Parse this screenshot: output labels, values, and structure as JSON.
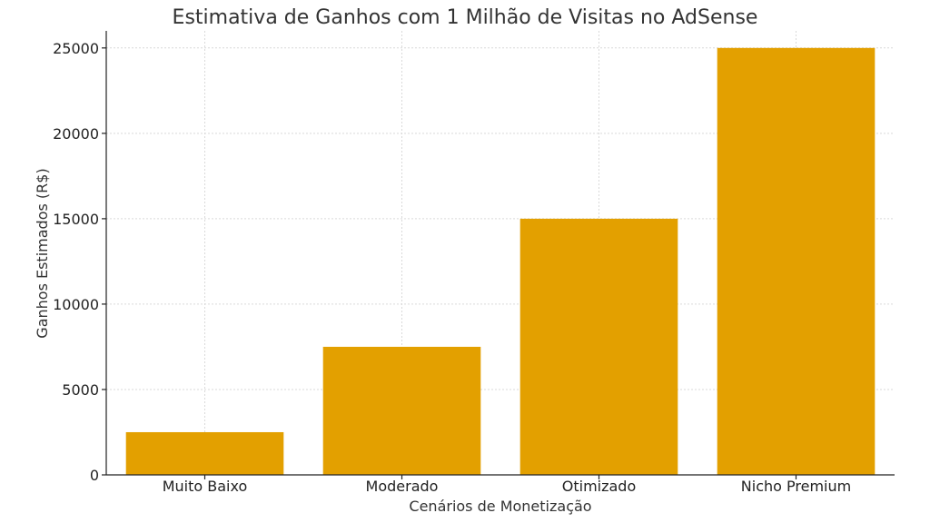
{
  "chart_data": {
    "type": "bar",
    "title": "Estimativa de Ganhos com 1 Milhão de Visitas no AdSense",
    "xlabel": "Cenários de Monetização",
    "ylabel": "Ganhos Estimados (R$)",
    "categories": [
      "Muito Baixo",
      "Moderado",
      "Otimizado",
      "Nicho Premium"
    ],
    "values": [
      2500,
      7500,
      15000,
      25000
    ],
    "ylim": [
      0,
      26000
    ],
    "yticks": [
      0,
      5000,
      10000,
      15000,
      20000,
      25000
    ],
    "grid": true,
    "bar_color": "#E3A000"
  }
}
